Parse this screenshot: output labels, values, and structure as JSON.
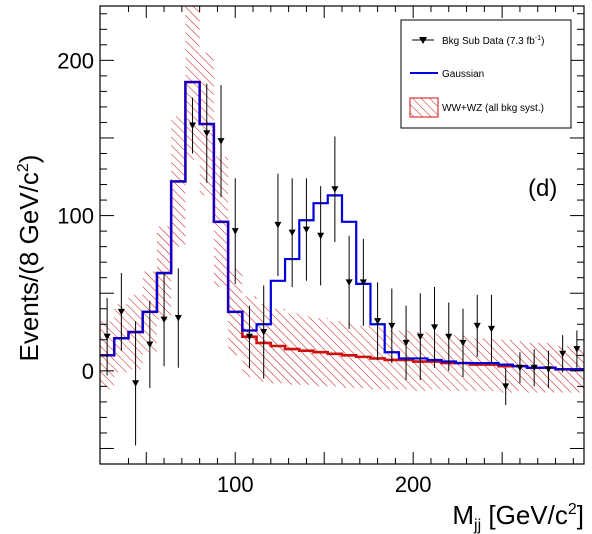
{
  "chart_data": {
    "type": "line",
    "panel_label": "(d)",
    "ylabel_main": "Events/(8 GeV/c",
    "ylabel_sup": "2",
    "ylabel_close": ")",
    "xlabel_main": "M",
    "xlabel_sub": "jj",
    "xlabel_unit": " [GeV/c",
    "xlabel_sup": "2",
    "xlabel_close": "]",
    "xlim": [
      24,
      296
    ],
    "ylim": [
      -60,
      235
    ],
    "xticks": [
      100,
      200
    ],
    "yticks": [
      0,
      100,
      200
    ],
    "bin_edges": [
      24,
      32,
      40,
      48,
      56,
      64,
      72,
      80,
      88,
      96,
      104,
      112,
      120,
      128,
      136,
      144,
      152,
      160,
      168,
      176,
      184,
      192,
      200,
      208,
      216,
      224,
      232,
      240,
      248,
      256,
      264,
      272,
      280,
      288,
      296
    ],
    "legend": {
      "position": "top-right",
      "entries": [
        {
          "label": "Bkg Sub Data (7.3 fb",
          "sup": "-1",
          "close": ")",
          "kind": "points"
        },
        {
          "label": "Gaussian",
          "kind": "line"
        },
        {
          "label": "WW+WZ (all bkg syst.)",
          "kind": "hatched"
        }
      ]
    },
    "series": [
      {
        "name": "Bkg Sub Data (7.3 fb-1)",
        "kind": "points",
        "color": "#000000",
        "x": [
          28,
          36,
          44,
          52,
          60,
          68,
          76,
          84,
          92,
          100,
          108,
          116,
          124,
          132,
          140,
          148,
          156,
          164,
          172,
          180,
          188,
          196,
          204,
          212,
          220,
          228,
          236,
          244,
          252,
          260,
          268,
          276,
          284,
          292
        ],
        "y": [
          22,
          38,
          -8,
          17,
          33,
          34,
          158,
          153,
          148,
          90,
          22,
          25,
          94,
          89,
          91,
          87,
          117,
          57,
          57,
          32,
          29,
          18,
          22,
          28,
          22,
          18,
          29,
          27,
          -10,
          2,
          2,
          1,
          11,
          14
        ],
        "err": [
          25,
          25,
          40,
          28,
          30,
          32,
          18,
          32,
          36,
          34,
          20,
          30,
          33,
          35,
          33,
          32,
          34,
          30,
          28,
          25,
          24,
          24,
          28,
          26,
          22,
          22,
          20,
          22,
          12,
          10,
          12,
          12,
          12,
          12
        ]
      },
      {
        "name": "Gaussian",
        "kind": "step",
        "color": "#0000dd",
        "values": [
          10,
          21,
          25,
          38,
          63,
          122,
          186,
          159,
          96,
          38,
          26,
          30,
          58,
          72,
          97,
          108,
          113,
          96,
          56,
          30,
          12,
          8,
          8,
          7,
          6,
          5,
          5,
          5,
          4,
          3,
          2,
          2,
          1,
          1
        ]
      },
      {
        "name": "WW+WZ (all bkg syst.)",
        "kind": "step_band",
        "color": "#cc1111",
        "values": [
          10,
          21,
          25,
          38,
          63,
          122,
          186,
          159,
          96,
          38,
          22,
          18,
          16,
          14,
          13,
          12,
          11,
          10,
          9,
          8,
          7,
          7,
          6,
          6,
          5,
          5,
          4,
          4,
          3,
          3,
          2,
          2,
          1,
          1
        ],
        "band": [
          22,
          22,
          24,
          26,
          30,
          42,
          50,
          46,
          42,
          28,
          26,
          25,
          24,
          23,
          22,
          22,
          21,
          21,
          20,
          20,
          19,
          19,
          19,
          18,
          18,
          18,
          17,
          17,
          17,
          16,
          16,
          16,
          15,
          15
        ]
      }
    ]
  }
}
